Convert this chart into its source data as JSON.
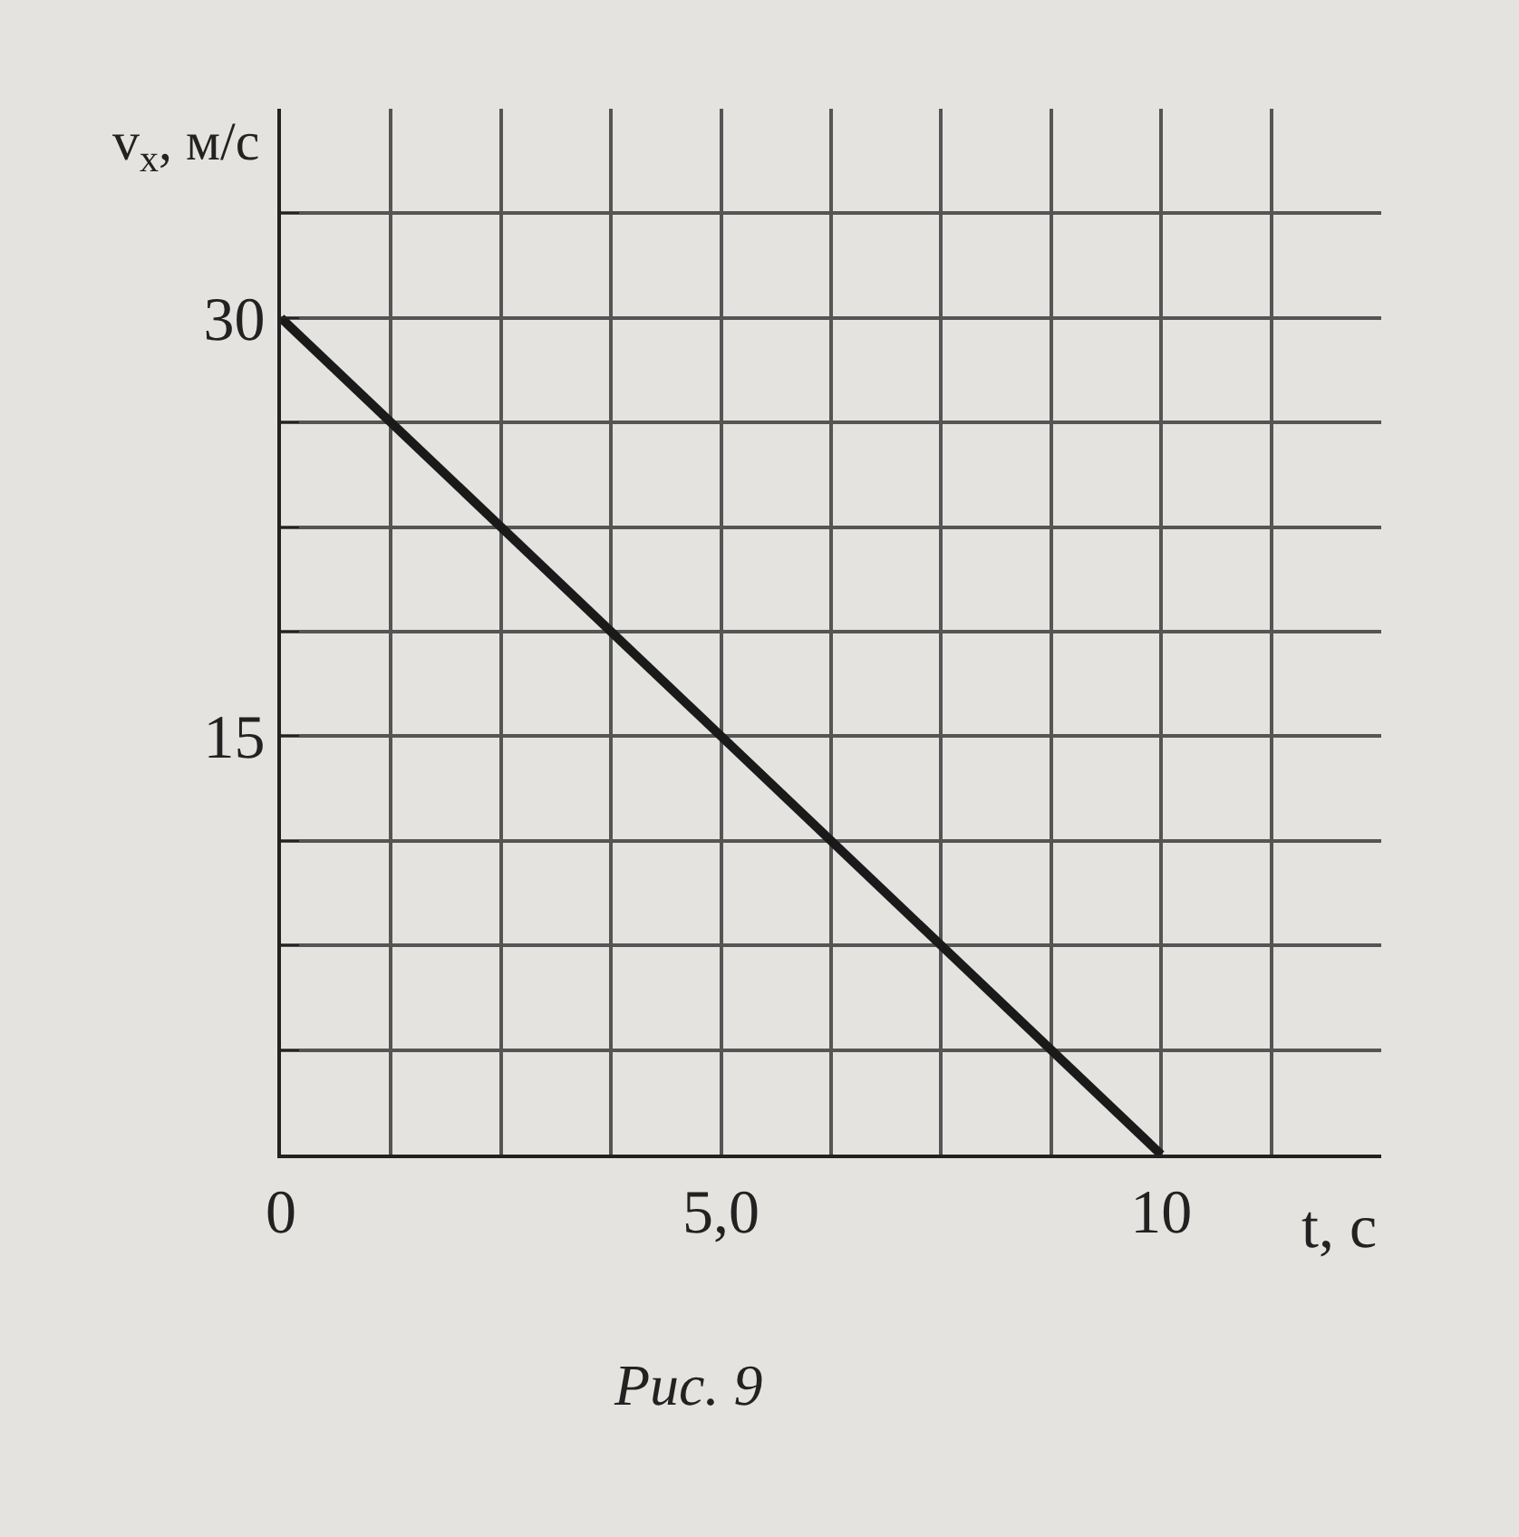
{
  "chart_data": {
    "type": "line",
    "x": [
      0,
      10
    ],
    "series": [
      {
        "color": "#1a1a1a",
        "values": [
          30,
          0
        ]
      }
    ],
    "xlabel": "t, с",
    "ylabel": "v$_{x}$, м/с",
    "annotations": [
      "Рис. 9"
    ],
    "xlim": [
      0,
      12.5
    ],
    "ylim": [
      0,
      37.5
    ],
    "xticks": [
      0,
      {
        "value": 1.25,
        "label": null
      },
      {
        "value": 2.5,
        "label": null
      },
      {
        "value": 3.75,
        "label": null
      },
      {
        "value": 5,
        "label": "5,0"
      },
      {
        "value": 6.25,
        "label": null
      },
      {
        "value": 7.5,
        "label": null
      },
      {
        "value": 8.75,
        "label": null
      },
      10,
      {
        "value": 11.25,
        "label": null
      }
    ],
    "yticks": [
      {
        "value": 0,
        "label": null
      },
      {
        "value": 3.75,
        "label": null
      },
      {
        "value": 7.5,
        "label": null
      },
      {
        "value": 11.25,
        "label": null
      },
      15,
      {
        "value": 18.75,
        "label": null
      },
      {
        "value": 22.5,
        "label": null
      },
      {
        "value": 26.25,
        "label": null
      },
      30,
      {
        "value": 33.75,
        "label": null
      }
    ],
    "grid": true,
    "marker": "none",
    "line_style": "solid"
  }
}
